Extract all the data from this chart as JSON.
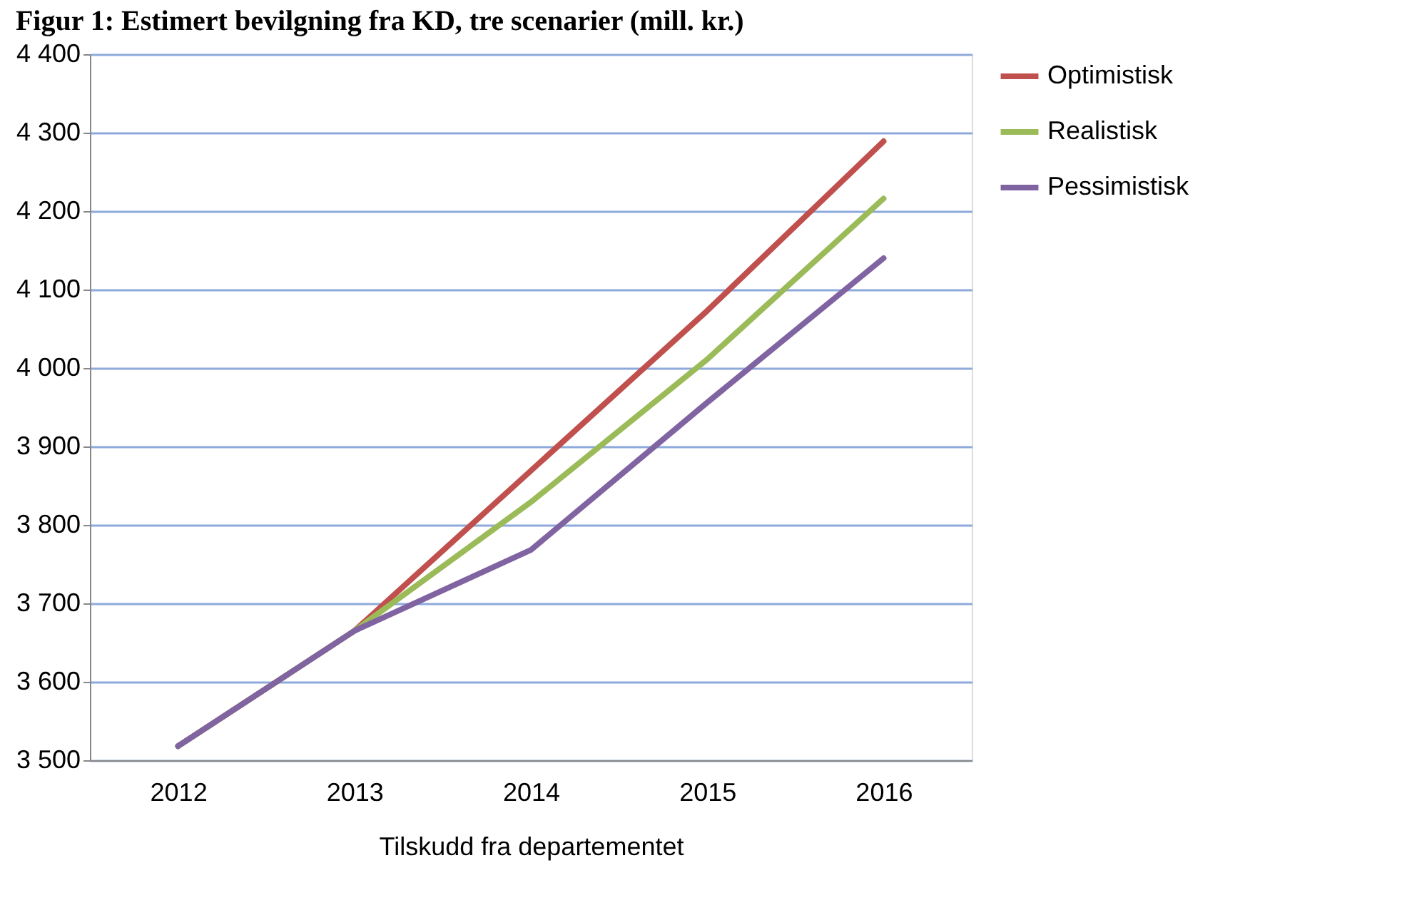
{
  "chart_data": {
    "type": "line",
    "title": "Figur 1: Estimert bevilgning fra KD, tre scenarier (mill. kr.)",
    "xlabel": "Tilskudd fra departementet",
    "categories": [
      "2012",
      "2013",
      "2014",
      "2015",
      "2016"
    ],
    "series": [
      {
        "name": "Optimistisk",
        "color": "#c0504d",
        "values": [
          3518,
          3665,
          3869,
          4073,
          4289
        ]
      },
      {
        "name": "Realistisk",
        "color": "#9bbb59",
        "values": [
          3518,
          3665,
          3829,
          4011,
          4216
        ]
      },
      {
        "name": "Pessimistisk",
        "color": "#8064a2",
        "values": [
          3518,
          3665,
          3768,
          3956,
          4140
        ]
      }
    ],
    "ylim": [
      3500,
      4400
    ],
    "yticks": [
      {
        "value": 3500,
        "label": "3 500"
      },
      {
        "value": 3600,
        "label": "3 600"
      },
      {
        "value": 3700,
        "label": "3 700"
      },
      {
        "value": 3800,
        "label": "3 800"
      },
      {
        "value": 3900,
        "label": "3 900"
      },
      {
        "value": 4000,
        "label": "4 000"
      },
      {
        "value": 4100,
        "label": "4 100"
      },
      {
        "value": 4200,
        "label": "4 200"
      },
      {
        "value": 4300,
        "label": "4 300"
      },
      {
        "value": 4400,
        "label": "4 400"
      }
    ],
    "grid": "y",
    "legend": "right",
    "marker": "none",
    "line_style": "solid"
  }
}
